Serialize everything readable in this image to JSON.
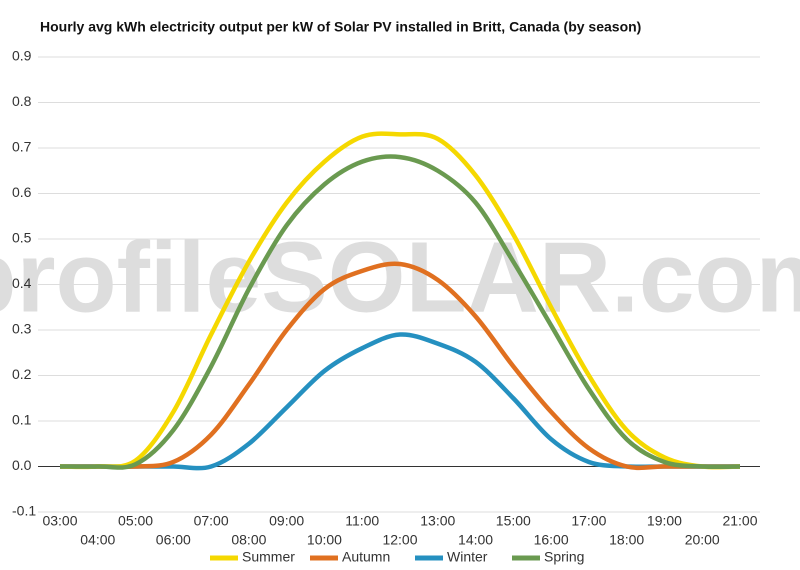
{
  "chart_data": {
    "type": "line",
    "title": "Hourly avg kWh electricity output per kW of Solar PV installed in Britt, Canada (by season)",
    "watermark": "profileSOLAR.com",
    "categories": [
      "03:00",
      "04:00",
      "05:00",
      "06:00",
      "07:00",
      "08:00",
      "09:00",
      "10:00",
      "11:00",
      "12:00",
      "13:00",
      "14:00",
      "15:00",
      "16:00",
      "17:00",
      "18:00",
      "19:00",
      "20:00",
      "21:00"
    ],
    "series": [
      {
        "name": "Summer",
        "color": "#f5d800",
        "values": [
          0,
          0,
          0.013,
          0.12,
          0.29,
          0.45,
          0.58,
          0.67,
          0.725,
          0.73,
          0.72,
          0.64,
          0.51,
          0.35,
          0.2,
          0.08,
          0.02,
          0,
          0
        ]
      },
      {
        "name": "Autumn",
        "color": "#e07020",
        "values": [
          0,
          0,
          0,
          0.01,
          0.07,
          0.18,
          0.3,
          0.39,
          0.43,
          0.445,
          0.41,
          0.33,
          0.22,
          0.12,
          0.04,
          0,
          0,
          0,
          0
        ]
      },
      {
        "name": "Winter",
        "color": "#2590c0",
        "values": [
          0,
          0,
          0,
          0,
          0,
          0.05,
          0.13,
          0.21,
          0.26,
          0.29,
          0.27,
          0.23,
          0.15,
          0.06,
          0.01,
          0,
          0,
          0,
          0
        ]
      },
      {
        "name": "Spring",
        "color": "#6a9a50",
        "values": [
          0,
          0,
          0.005,
          0.08,
          0.22,
          0.39,
          0.53,
          0.62,
          0.67,
          0.68,
          0.65,
          0.58,
          0.45,
          0.31,
          0.17,
          0.06,
          0.01,
          0,
          0
        ]
      }
    ],
    "ylim": [
      -0.1,
      0.9
    ],
    "yticks": [
      -0.1,
      {
        "value": 0,
        "label": "0.0"
      },
      0.1,
      0.2,
      0.3,
      0.4,
      0.5,
      0.6,
      0.7,
      0.8,
      0.9
    ],
    "grid": true
  }
}
